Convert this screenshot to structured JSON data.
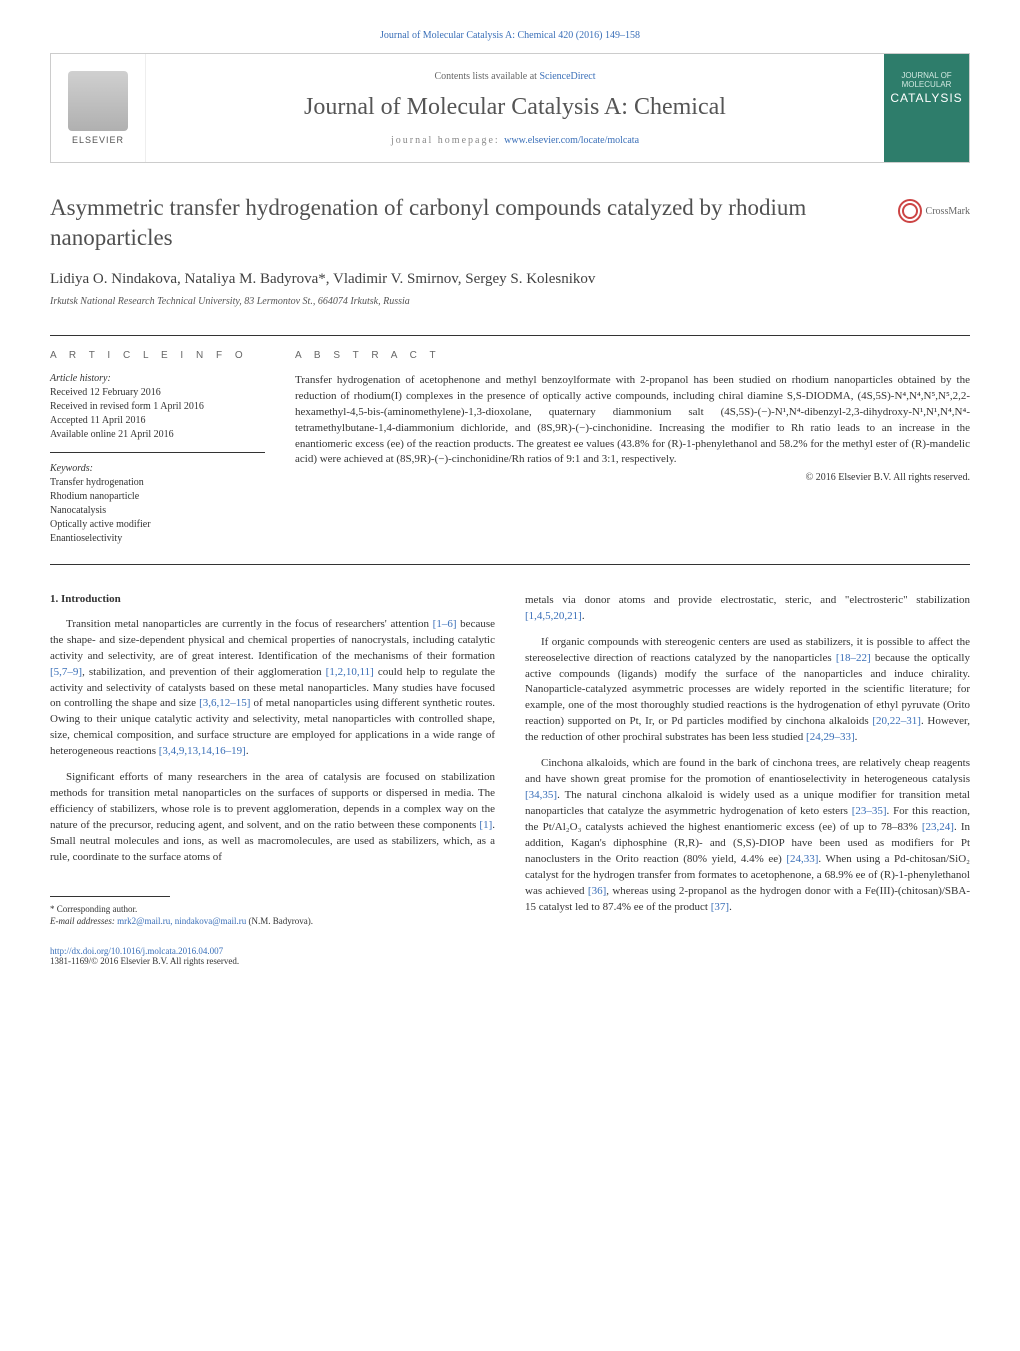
{
  "colors": {
    "link": "#3a6fb8",
    "text": "#333333",
    "title_gray": "#505050",
    "journal_gray": "#555555",
    "cover_bg": "#2e7d6b",
    "border": "#cccccc"
  },
  "top_link": "Journal of Molecular Catalysis A: Chemical 420 (2016) 149–158",
  "header": {
    "elsevier_label": "ELSEVIER",
    "contents_prefix": "Contents lists available at ",
    "contents_link": "ScienceDirect",
    "journal_title": "Journal of Molecular Catalysis A: Chemical",
    "homepage_prefix": "journal homepage: ",
    "homepage_url": "www.elsevier.com/locate/molcata",
    "cover_small": "JOURNAL OF MOLECULAR",
    "cover_word": "CATALYSIS"
  },
  "title": "Asymmetric transfer hydrogenation of carbonyl compounds catalyzed by rhodium nanoparticles",
  "crossmark_label": "CrossMark",
  "authors": "Lidiya O. Nindakova, Nataliya M. Badyrova*, Vladimir V. Smirnov, Sergey S. Kolesnikov",
  "affiliation": "Irkutsk National Research Technical University, 83 Lermontov St., 664074 Irkutsk, Russia",
  "info": {
    "heading": "A R T I C L E   I N F O",
    "history_label": "Article history:",
    "history": [
      "Received 12 February 2016",
      "Received in revised form 1 April 2016",
      "Accepted 11 April 2016",
      "Available online 21 April 2016"
    ],
    "keywords_label": "Keywords:",
    "keywords": [
      "Transfer hydrogenation",
      "Rhodium nanoparticle",
      "Nanocatalysis",
      "Optically active modifier",
      "Enantioselectivity"
    ]
  },
  "abstract": {
    "heading": "A B S T R A C T",
    "text": "Transfer hydrogenation of acetophenone and methyl benzoylformate with 2-propanol has been studied on rhodium nanoparticles obtained by the reduction of rhodium(I) complexes in the presence of optically active compounds, including chiral diamine S,S-DIODMA, (4S,5S)-N⁴,N⁴,N⁵,N⁵,2,2-hexamethyl-4,5-bis-(aminomethylene)-1,3-dioxolane, quaternary diammonium salt (4S,5S)-(−)-N¹,N⁴-dibenzyl-2,3-dihydroxy-N¹,N¹,N⁴,N⁴-tetramethylbutane-1,4-diammonium dichloride, and (8S,9R)-(−)-cinchonidine. Increasing the modifier to Rh ratio leads to an increase in the enantiomeric excess (ee) of the reaction products. The greatest ee values (43.8% for (R)-1-phenylethanol and 58.2% for the methyl ester of (R)-mandelic acid) were achieved at (8S,9R)-(−)-cinchonidine/Rh ratios of 9:1 and 3:1, respectively.",
    "copyright": "© 2016 Elsevier B.V. All rights reserved."
  },
  "body": {
    "heading": "1. Introduction",
    "left": [
      "Transition metal nanoparticles are currently in the focus of researchers' attention [1–6] because the shape- and size-dependent physical and chemical properties of nanocrystals, including catalytic activity and selectivity, are of great interest. Identification of the mechanisms of their formation [5,7–9], stabilization, and prevention of their agglomeration [1,2,10,11] could help to regulate the activity and selectivity of catalysts based on these metal nanoparticles. Many studies have focused on controlling the shape and size [3,6,12–15] of metal nanoparticles using different synthetic routes. Owing to their unique catalytic activity and selectivity, metal nanoparticles with controlled shape, size, chemical composition, and surface structure are employed for applications in a wide range of heterogeneous reactions [3,4,9,13,14,16–19].",
      "Significant efforts of many researchers in the area of catalysis are focused on stabilization methods for transition metal nanoparticles on the surfaces of supports or dispersed in media. The efficiency of stabilizers, whose role is to prevent agglomeration, depends in a complex way on the nature of the precursor, reducing agent, and solvent, and on the ratio between these components [1]. Small neutral molecules and ions, as well as macromolecules, are used as stabilizers, which, as a rule, coordinate to the surface atoms of"
    ],
    "right": [
      "metals via donor atoms and provide electrostatic, steric, and \"electrosteric\" stabilization [1,4,5,20,21].",
      "If organic compounds with stereogenic centers are used as stabilizers, it is possible to affect the stereoselective direction of reactions catalyzed by the nanoparticles [18–22] because the optically active compounds (ligands) modify the surface of the nanoparticles and induce chirality. Nanoparticle-catalyzed asymmetric processes are widely reported in the scientific literature; for example, one of the most thoroughly studied reactions is the hydrogenation of ethyl pyruvate (Orito reaction) supported on Pt, Ir, or Pd particles modified by cinchona alkaloids [20,22–31]. However, the reduction of other prochiral substrates has been less studied [24,29–33].",
      "Cinchona alkaloids, which are found in the bark of cinchona trees, are relatively cheap reagents and have shown great promise for the promotion of enantioselectivity in heterogeneous catalysis [34,35]. The natural cinchona alkaloid is widely used as a unique modifier for transition metal nanoparticles that catalyze the asymmetric hydrogenation of keto esters [23–35]. For this reaction, the Pt/Al₂O₃ catalysts achieved the highest enantiomeric excess (ee) of up to 78–83% [23,24]. In addition, Kagan's diphosphine (R,R)- and (S,S)-DIOP have been used as modifiers for Pt nanoclusters in the Orito reaction (80% yield, 4.4% ee) [24,33]. When using a Pd-chitosan/SiO₂ catalyst for the hydrogen transfer from formates to acetophenone, a 68.9% ee of (R)-1-phenylethanol was achieved [36], whereas using 2-propanol as the hydrogen donor with a Fe(III)-(chitosan)/SBA-15 catalyst led to 87.4% ee of the product [37]."
    ]
  },
  "footnote": {
    "corr": "* Corresponding author.",
    "email_label": "E-mail addresses: ",
    "emails": "mrk2@mail.ru, nindakova@mail.ru",
    "email_person": " (N.M. Badyrova)."
  },
  "doi": {
    "url": "http://dx.doi.org/10.1016/j.molcata.2016.04.007",
    "issn": "1381-1169/© 2016 Elsevier B.V. All rights reserved."
  }
}
